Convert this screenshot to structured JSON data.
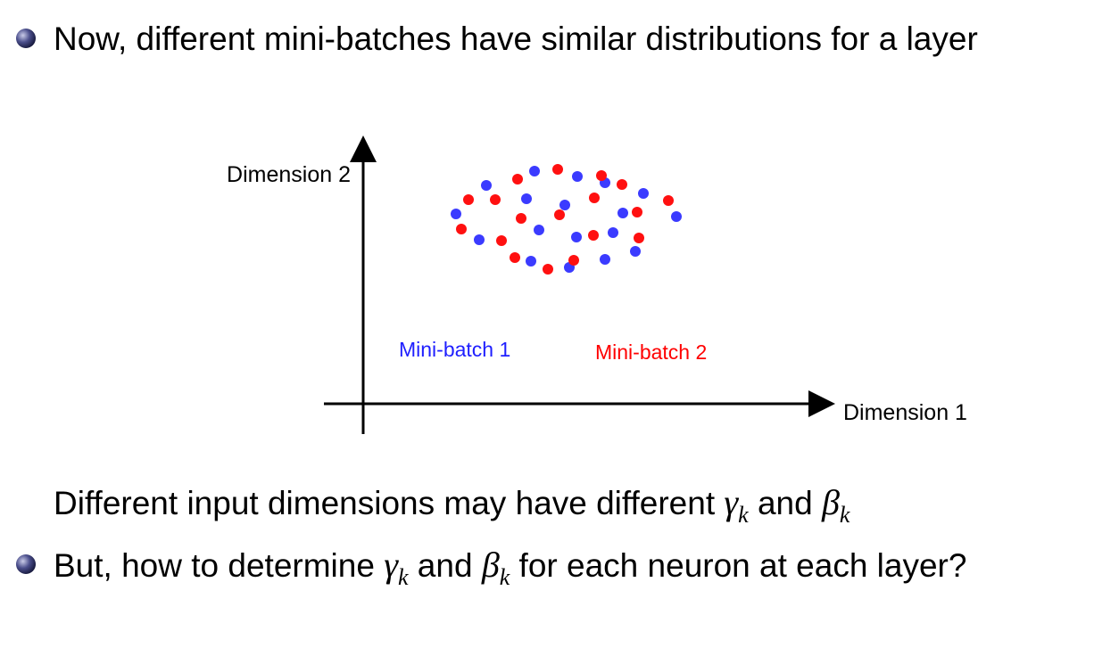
{
  "bullets": [
    {
      "parts": [
        "Now, different mini-batches have similar distributions for a layer"
      ]
    },
    {
      "parts": [
        "But, how to determine ",
        "γ",
        "k",
        " and ",
        "β",
        "k",
        " for each neuron at each layer?"
      ]
    }
  ],
  "figure": {
    "y_axis_label": "Dimension 2",
    "x_axis_label": "Dimension 1",
    "legend": [
      "Mini-batch 1",
      "Mini-batch 2"
    ]
  },
  "note": {
    "parts": [
      "Different input dimensions may have different ",
      "γ",
      "k",
      " and ",
      "β",
      "k"
    ]
  }
}
